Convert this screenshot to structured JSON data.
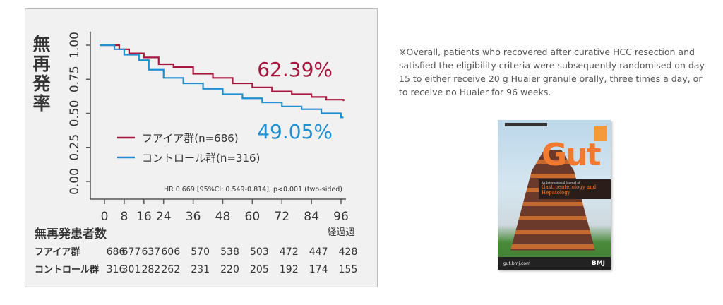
{
  "chart_data": {
    "type": "line",
    "title": "",
    "ylabel": "無再発率",
    "xlabel": "経過週",
    "ylim": [
      0,
      1
    ],
    "xlim": [
      0,
      96
    ],
    "yticks": [
      "0.00",
      "0.25",
      "0.50",
      "0.75",
      "1.00"
    ],
    "ytick_values": [
      0,
      0.25,
      0.5,
      0.75,
      1.0
    ],
    "xticks": [
      "0",
      "8",
      "16",
      "24",
      "36",
      "48",
      "60",
      "72",
      "84",
      "96"
    ],
    "xtick_values": [
      0,
      8,
      16,
      24,
      36,
      48,
      60,
      72,
      84,
      96
    ],
    "legend_placement": "center-left",
    "series": [
      {
        "name": "フアイア群(n=686)",
        "color": "#a8173f",
        "end_label": "62.39%",
        "points": [
          [
            -2,
            1
          ],
          [
            4,
            1
          ],
          [
            6,
            0.97
          ],
          [
            10,
            0.94
          ],
          [
            16,
            0.91
          ],
          [
            22,
            0.86
          ],
          [
            28,
            0.84
          ],
          [
            36,
            0.79
          ],
          [
            44,
            0.76
          ],
          [
            52,
            0.72
          ],
          [
            60,
            0.69
          ],
          [
            68,
            0.66
          ],
          [
            76,
            0.64
          ],
          [
            84,
            0.62
          ],
          [
            90,
            0.6
          ],
          [
            96,
            0.6
          ],
          [
            97,
            0.59
          ]
        ]
      },
      {
        "name": "コントロール群(n=316)",
        "color": "#2290d0",
        "end_label": "49.05%",
        "points": [
          [
            -2,
            1
          ],
          [
            2,
            1
          ],
          [
            4,
            0.97
          ],
          [
            8,
            0.93
          ],
          [
            14,
            0.89
          ],
          [
            18,
            0.82
          ],
          [
            24,
            0.76
          ],
          [
            32,
            0.72
          ],
          [
            40,
            0.68
          ],
          [
            48,
            0.64
          ],
          [
            56,
            0.61
          ],
          [
            64,
            0.58
          ],
          [
            72,
            0.55
          ],
          [
            80,
            0.53
          ],
          [
            88,
            0.5
          ],
          [
            96,
            0.47
          ],
          [
            97,
            0.47
          ]
        ]
      }
    ],
    "annotation": "HR 0.669 [95%CI: 0.549-0.814], p<0.001 (two-sided)"
  },
  "risk_table": {
    "title": "無再発患者数",
    "x_unit": "経過週",
    "rows": [
      {
        "label": "フアイア群",
        "values": [
          "686",
          "677",
          "637",
          "606",
          "570",
          "538",
          "503",
          "472",
          "447",
          "428"
        ]
      },
      {
        "label": "コントロール群",
        "values": [
          "316",
          "301",
          "282",
          "262",
          "231",
          "220",
          "205",
          "192",
          "174",
          "155"
        ]
      }
    ]
  },
  "note": "※Overall, patients who recovered after curative HCC resection and satisfied the eligibility criteria were subsequently randomised on day 15 to either receive 20 g Huaier granule orally, three times a day, or to receive no Huaier for 96 weeks.",
  "cover": {
    "title": "Gut",
    "subtitle_small": "An International Journal of",
    "subtitle": "Gastroenterology and Hepatology",
    "url": "gut.bmj.com",
    "publisher": "BMJ"
  }
}
